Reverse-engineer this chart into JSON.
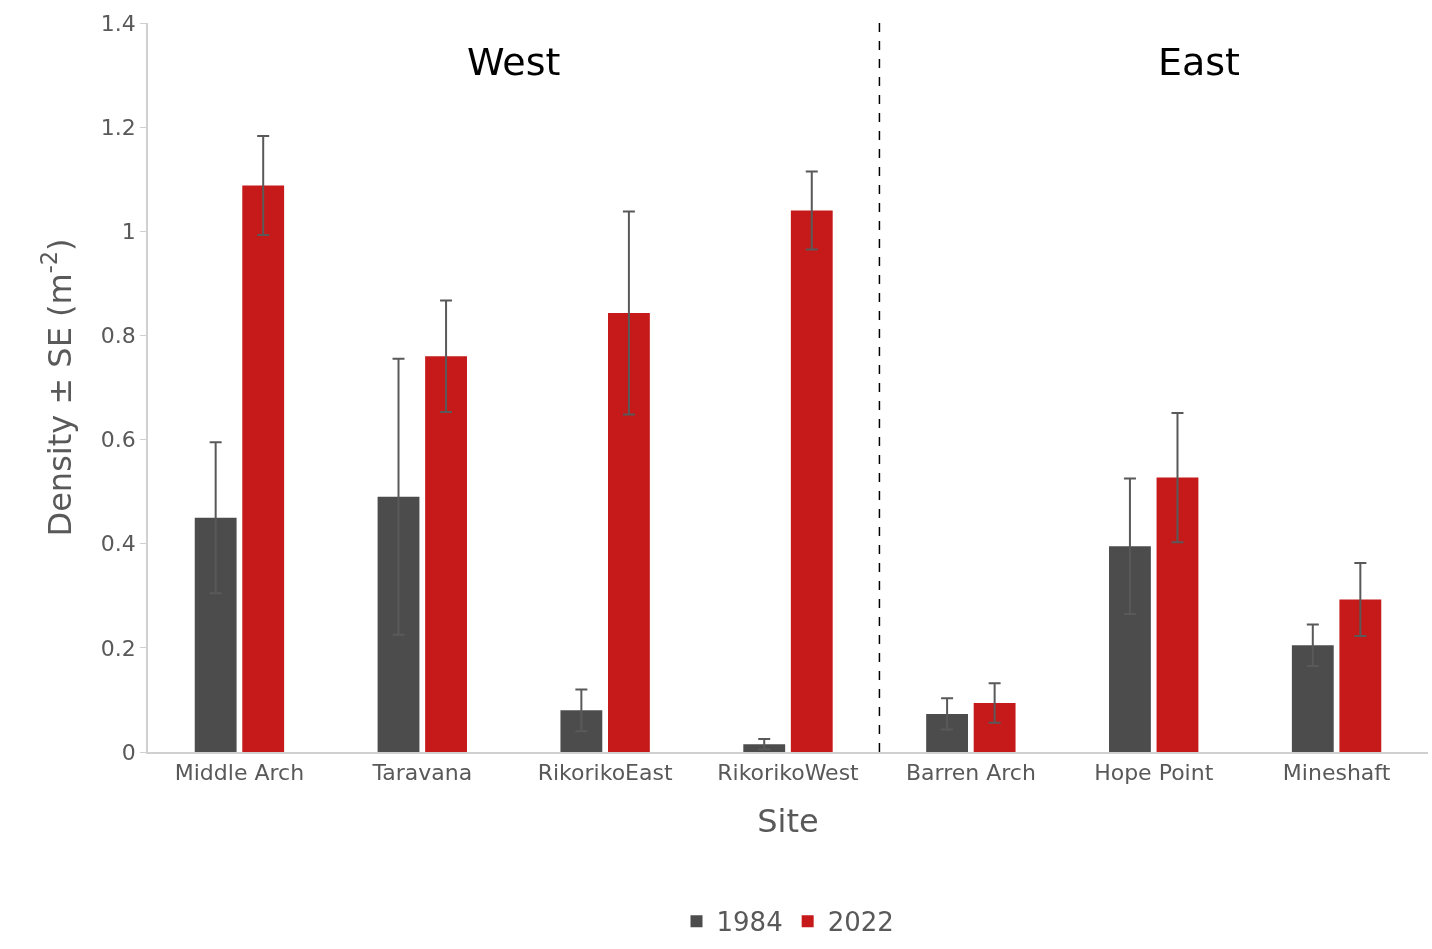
{
  "chart_data": {
    "type": "bar",
    "xlabel": "Site",
    "ylabel": "Density ± SE (m$^{-2}$)",
    "categories": [
      "Middle Arch",
      "Taravana",
      "RikorikoEast",
      "RikorikoWest",
      "Barren Arch",
      "Hope Point",
      "Mineshaft"
    ],
    "series": [
      {
        "name": "1984",
        "color": "#4d4c4c",
        "values": [
          0.45,
          0.49,
          0.08,
          0.015,
          0.073,
          0.395,
          0.205
        ],
        "errors": [
          0.145,
          0.265,
          0.04,
          0.01,
          0.03,
          0.13,
          0.04
        ]
      },
      {
        "name": "2022",
        "color": "#c5191a",
        "values": [
          1.088,
          0.76,
          0.843,
          1.04,
          0.094,
          0.527,
          0.293
        ],
        "errors": [
          0.095,
          0.107,
          0.195,
          0.075,
          0.038,
          0.124,
          0.07
        ]
      }
    ],
    "ylim": [
      0,
      1.4
    ],
    "yticks": [
      0,
      0.2,
      0.4,
      0.6,
      0.8,
      1,
      1.2,
      1.4
    ],
    "annotations": [
      "West",
      "East"
    ],
    "legend": "bottom"
  }
}
